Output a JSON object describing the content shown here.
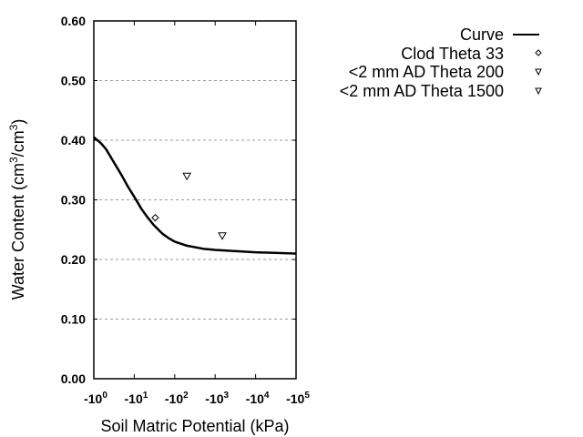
{
  "chart_data": {
    "type": "line",
    "title": "",
    "xlabel": "Soil Matric Potential (kPa)",
    "ylabel": "Water Content (cm3/cm3)",
    "xscale": "log",
    "x_tick_labels": [
      "-10^0",
      "-10^1",
      "-10^2",
      "-10^3",
      "-10^4",
      "-10^5"
    ],
    "x_ticks": [
      {
        "base": "-10",
        "exp": "0"
      },
      {
        "base": "-10",
        "exp": "1"
      },
      {
        "base": "-10",
        "exp": "2"
      },
      {
        "base": "-10",
        "exp": "3"
      },
      {
        "base": "-10",
        "exp": "4"
      },
      {
        "base": "-10",
        "exp": "5"
      }
    ],
    "y_ticks": [
      "0.00",
      "0.10",
      "0.20",
      "0.30",
      "0.40",
      "0.50",
      "0.60"
    ],
    "ylim": [
      0,
      0.6
    ],
    "xlim": [
      -1,
      -100000
    ],
    "grid": "horizontal dotted",
    "legend_position": "right, outside",
    "series": [
      {
        "name": "Curve",
        "style": "line",
        "x": [
          -1,
          -1.5,
          -2,
          -3,
          -5,
          -7,
          -10,
          -15,
          -20,
          -30,
          -50,
          -70,
          -100,
          -200,
          -500,
          -1000,
          -3000,
          -10000,
          -30000,
          -100000
        ],
        "y": [
          0.405,
          0.395,
          0.385,
          0.365,
          0.34,
          0.322,
          0.305,
          0.285,
          0.273,
          0.258,
          0.243,
          0.236,
          0.23,
          0.223,
          0.218,
          0.216,
          0.214,
          0.212,
          0.211,
          0.21
        ]
      },
      {
        "name": "Clod Theta 33",
        "style": "diamond",
        "x": [
          -33
        ],
        "y": [
          0.27
        ]
      },
      {
        "name": "<2 mm AD Theta 200",
        "style": "triangle-down",
        "x": [
          -200
        ],
        "y": [
          0.34
        ]
      },
      {
        "name": "<2 mm AD Theta 1500",
        "style": "triangle-down",
        "x": [
          -1500
        ],
        "y": [
          0.24
        ]
      }
    ]
  },
  "axes": {
    "xlabel": "Soil Matric Potential (kPa)",
    "ylabel_main": "Water Content (cm",
    "ylabel_sup1": "3",
    "ylabel_mid": "/cm",
    "ylabel_sup2": "3",
    "ylabel_end": ")"
  },
  "legend": {
    "items": [
      {
        "label": "Curve",
        "symbol": "line"
      },
      {
        "label": "Clod Theta 33",
        "symbol": "diamond"
      },
      {
        "label": "<2 mm AD Theta 200",
        "symbol": "triangle-down"
      },
      {
        "label": "<2 mm AD Theta 1500",
        "symbol": "triangle-down"
      }
    ]
  }
}
